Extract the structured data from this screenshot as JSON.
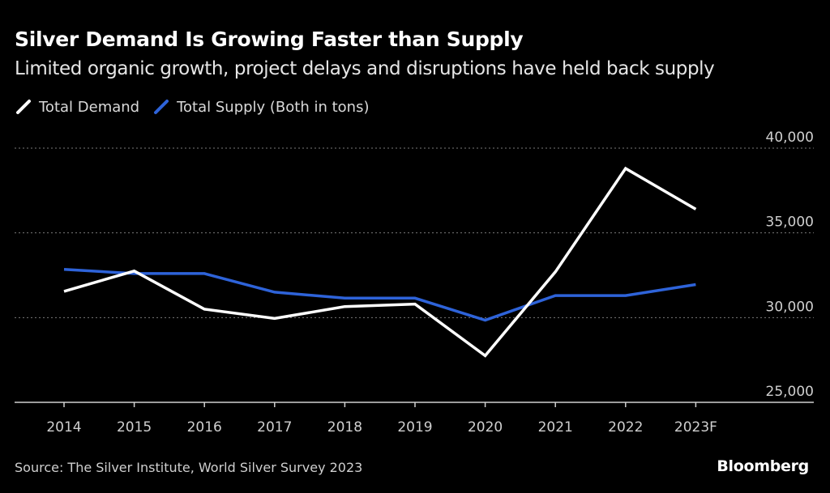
{
  "chart_data": {
    "type": "line",
    "title": "Silver Demand Is Growing Faster than Supply",
    "subtitle": "Limited organic growth, project delays and disruptions have held back supply",
    "x": [
      "2014",
      "2015",
      "2016",
      "2017",
      "2018",
      "2019",
      "2020",
      "2021",
      "2022",
      "2023F"
    ],
    "series": [
      {
        "name": "Total Demand",
        "color": "#ffffff",
        "values": [
          31550,
          32750,
          30500,
          29950,
          30650,
          30800,
          27750,
          32700,
          38800,
          36400
        ]
      },
      {
        "name": "Total Supply (Both in tons)",
        "color": "#2e63d9",
        "values": [
          32850,
          32600,
          32600,
          31500,
          31150,
          31150,
          29850,
          31300,
          31300,
          31950
        ]
      }
    ],
    "ylim": [
      25000,
      40000
    ],
    "yticks": [
      "25,000",
      "30,000",
      "35,000",
      "40,000"
    ],
    "ytick_values": [
      25000,
      30000,
      35000,
      40000
    ],
    "grid": true,
    "y_axis_side": "right",
    "legend_position": "top-left"
  },
  "source": "Source: The Silver Institute, World Silver Survey 2023",
  "brand": "Bloomberg"
}
